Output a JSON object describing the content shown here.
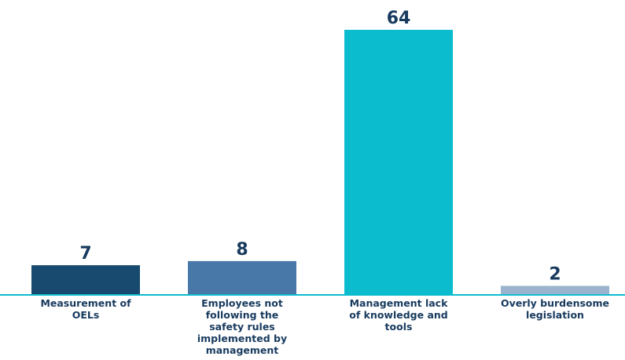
{
  "chart_data": {
    "type": "bar",
    "categories": [
      [
        "Measurement of",
        "OELs"
      ],
      [
        "Employees not",
        "following the",
        "safety rules",
        "implemented by",
        "management"
      ],
      [
        "Management lack",
        "of knowledge and",
        "tools"
      ],
      [
        "Overly burdensome",
        "legislation"
      ]
    ],
    "values": [
      7,
      8,
      64,
      2
    ],
    "colors": [
      "#174a6e",
      "#4778a8",
      "#0bbccf",
      "#99b4cc"
    ],
    "axis_color": "#0bbccf",
    "title": "",
    "xlabel": "",
    "ylabel": "",
    "ylim": [
      0,
      64
    ],
    "grid": false,
    "data_labels": true
  }
}
